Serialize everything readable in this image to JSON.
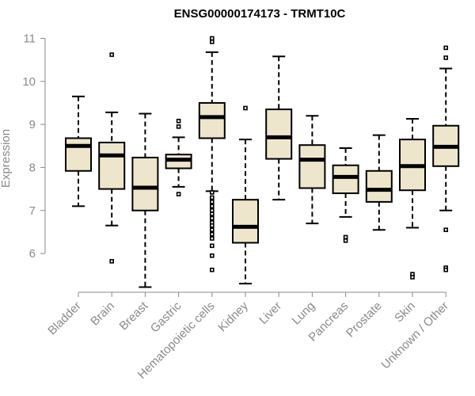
{
  "chart_data": {
    "type": "boxplot",
    "title": "ENSG00000174173 - TRMT10C",
    "xlabel": "",
    "ylabel": "Expression",
    "ylim": [
      5.1,
      11.1
    ],
    "yticks": [
      6,
      7,
      8,
      9,
      10,
      11
    ],
    "grid": false,
    "categories": [
      "Bladder",
      "Brain",
      "Breast",
      "Gastric",
      "Hematopoietic cells",
      "Kidney",
      "Liver",
      "Lung",
      "Pancreas",
      "Prostate",
      "Skin",
      "Unknown / Other"
    ],
    "boxes": [
      {
        "whisker_low": 7.1,
        "q1": 7.92,
        "median": 8.5,
        "q3": 8.68,
        "whisker_high": 9.65,
        "outliers": []
      },
      {
        "whisker_low": 6.65,
        "q1": 7.5,
        "median": 8.28,
        "q3": 8.58,
        "whisker_high": 9.28,
        "outliers": [
          10.62,
          5.82
        ]
      },
      {
        "whisker_low": 5.22,
        "q1": 7.0,
        "median": 7.53,
        "q3": 8.23,
        "whisker_high": 9.25,
        "outliers": []
      },
      {
        "whisker_low": 7.55,
        "q1": 7.98,
        "median": 8.18,
        "q3": 8.3,
        "whisker_high": 8.7,
        "outliers": [
          9.08,
          8.95,
          7.38
        ]
      },
      {
        "whisker_low": 7.45,
        "q1": 8.68,
        "median": 9.17,
        "q3": 9.5,
        "whisker_high": 10.68,
        "outliers": [
          11.0,
          10.92,
          7.42,
          7.3,
          7.2,
          7.1,
          7.0,
          6.92,
          6.82,
          6.72,
          6.65,
          6.55,
          6.45,
          6.35,
          6.18,
          5.95,
          5.62
        ]
      },
      {
        "whisker_low": 5.3,
        "q1": 6.25,
        "median": 6.62,
        "q3": 7.25,
        "whisker_high": 8.65,
        "outliers": [
          9.38
        ]
      },
      {
        "whisker_low": 7.25,
        "q1": 8.2,
        "median": 8.7,
        "q3": 9.35,
        "whisker_high": 10.58,
        "outliers": []
      },
      {
        "whisker_low": 6.7,
        "q1": 7.52,
        "median": 8.18,
        "q3": 8.52,
        "whisker_high": 9.2,
        "outliers": []
      },
      {
        "whisker_low": 6.85,
        "q1": 7.4,
        "median": 7.78,
        "q3": 8.05,
        "whisker_high": 8.45,
        "outliers": [
          6.38,
          6.3
        ]
      },
      {
        "whisker_low": 6.55,
        "q1": 7.2,
        "median": 7.48,
        "q3": 7.92,
        "whisker_high": 8.75,
        "outliers": []
      },
      {
        "whisker_low": 6.6,
        "q1": 7.47,
        "median": 8.03,
        "q3": 8.65,
        "whisker_high": 9.13,
        "outliers": [
          5.52,
          5.45
        ]
      },
      {
        "whisker_low": 7.0,
        "q1": 8.03,
        "median": 8.48,
        "q3": 8.97,
        "whisker_high": 10.3,
        "outliers": [
          10.78,
          10.55,
          6.55,
          5.67,
          5.62
        ]
      }
    ],
    "colors": {
      "box_fill": "#ede6cc",
      "stroke": "#000000",
      "axis": "#8a8a8a"
    }
  }
}
